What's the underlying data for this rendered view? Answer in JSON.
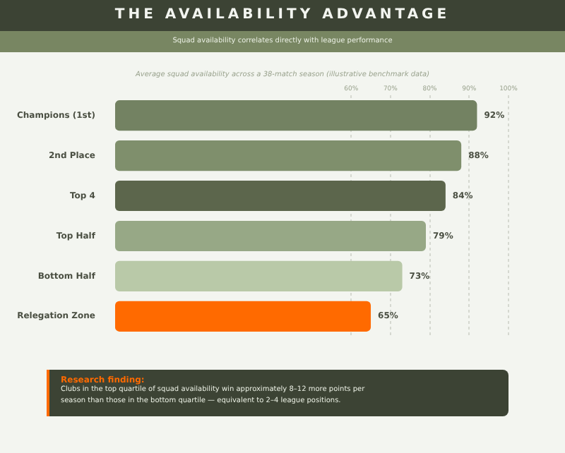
{
  "chart_data": {
    "type": "bar",
    "orientation": "horizontal",
    "title": "THE AVAILABILITY ADVANTAGE",
    "subtitle": "Squad availability correlates directly with league performance",
    "categories": [
      "Champions (1st)",
      "2nd Place",
      "Top 4",
      "Top Half",
      "Bottom Half",
      "Relegation Zone"
    ],
    "values": [
      92,
      88,
      84,
      79,
      73,
      65
    ],
    "colors": [
      "#738262",
      "#7f8f6c",
      "#5c664c",
      "#97a886",
      "#b9c9a8",
      "#ff6a00"
    ],
    "value_labels": [
      "92%",
      "88%",
      "84%",
      "79%",
      "73%",
      "65%"
    ],
    "xlim": [
      0,
      100
    ],
    "xticks": [
      {
        "value": 60,
        "label": "60%"
      },
      {
        "value": 70,
        "label": "70%"
      },
      {
        "value": 80,
        "label": "80%"
      },
      {
        "value": 90,
        "label": "90%"
      },
      {
        "value": 100,
        "label": "100%"
      }
    ],
    "grid": "x",
    "legend": false,
    "annotations": [
      "Average squad availability across a 38-match season (illustrative benchmark data)",
      "Research finding:",
      "Clubs in the top quartile of squad availability win approximately 8–12 more points per season than those in the bottom quartile — equivalent to 2–4 league positions."
    ]
  }
}
